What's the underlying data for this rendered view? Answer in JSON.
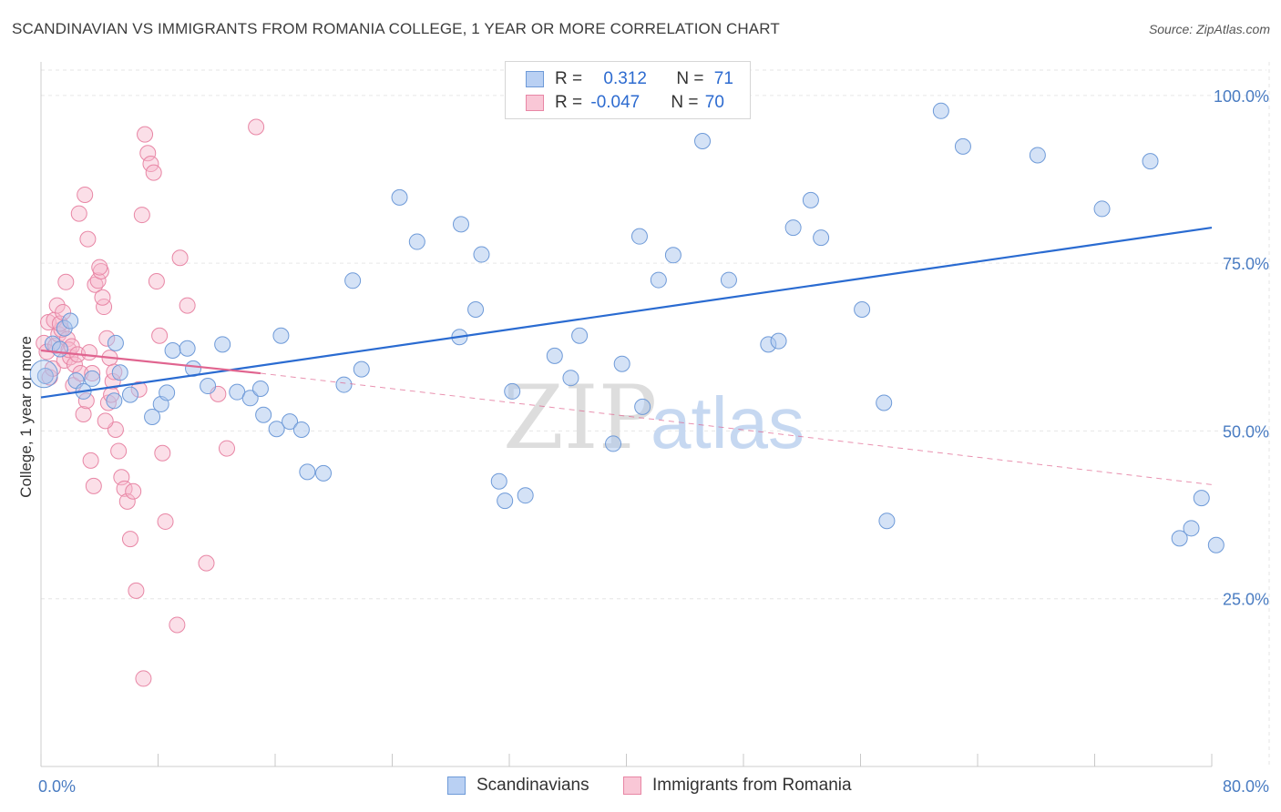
{
  "title": "SCANDINAVIAN VS IMMIGRANTS FROM ROMANIA COLLEGE, 1 YEAR OR MORE CORRELATION CHART",
  "source": "Source: ZipAtlas.com",
  "watermark": {
    "zip": "ZIP",
    "atlas": "atlas"
  },
  "legend": {
    "rows": [
      {
        "r_label": "R = ",
        "r_value": "0.312",
        "n_label": "N = ",
        "n_value": "71"
      },
      {
        "r_label": "R = ",
        "r_value": "-0.047",
        "n_label": "N = ",
        "n_value": "70"
      }
    ]
  },
  "bottom_legend": {
    "series1": "Scandinavians",
    "series2": "Immigrants from Romania"
  },
  "colors": {
    "blue_fill": "#a9c5ee",
    "blue_stroke": "#6e9ad8",
    "blue_line": "#2a6bd1",
    "pink_fill": "#f7b8cb",
    "pink_stroke": "#e886a5",
    "pink_line": "#e0648f"
  },
  "chart_data": {
    "type": "scatter",
    "title": "SCANDINAVIAN VS IMMIGRANTS FROM ROMANIA COLLEGE, 1 YEAR OR MORE CORRELATION CHART",
    "xlabel": "",
    "ylabel": "College, 1 year or more",
    "xlim": [
      0,
      80
    ],
    "ylim": [
      0,
      105
    ],
    "x_tick_labels": [
      "0.0%",
      "80.0%"
    ],
    "y_ticks": [
      25,
      50,
      75,
      100
    ],
    "y_tick_labels": [
      "25.0%",
      "50.0%",
      "75.0%",
      "100.0%"
    ],
    "grid": true,
    "series": [
      {
        "name": "Scandinavians",
        "r": 0.312,
        "n": 71,
        "trend": {
          "x0": 0,
          "y0": 55.0,
          "x1": 80,
          "y1": 80.3,
          "dashed_extension": false
        },
        "points": [
          [
            0.3,
            58.2
          ],
          [
            0.8,
            63.0
          ],
          [
            1.3,
            62.2
          ],
          [
            1.6,
            65.3
          ],
          [
            2.0,
            66.4
          ],
          [
            2.4,
            57.5
          ],
          [
            2.9,
            55.9
          ],
          [
            3.5,
            57.8
          ],
          [
            5.1,
            63.1
          ],
          [
            5.4,
            58.7
          ],
          [
            5.0,
            54.5
          ],
          [
            6.1,
            55.4
          ],
          [
            7.6,
            52.1
          ],
          [
            8.2,
            54.0
          ],
          [
            8.6,
            55.7
          ],
          [
            9.0,
            62.0
          ],
          [
            10.4,
            59.3
          ],
          [
            10.0,
            62.3
          ],
          [
            12.4,
            62.9
          ],
          [
            11.4,
            56.7
          ],
          [
            13.4,
            55.8
          ],
          [
            14.3,
            54.9
          ],
          [
            15.0,
            56.3
          ],
          [
            15.2,
            52.4
          ],
          [
            16.1,
            50.3
          ],
          [
            17.0,
            51.4
          ],
          [
            16.4,
            64.2
          ],
          [
            17.8,
            50.2
          ],
          [
            18.2,
            43.9
          ],
          [
            19.3,
            43.7
          ],
          [
            20.7,
            56.9
          ],
          [
            21.9,
            59.2
          ],
          [
            21.3,
            72.4
          ],
          [
            25.7,
            78.2
          ],
          [
            24.5,
            84.8
          ],
          [
            28.6,
            64.0
          ],
          [
            28.7,
            80.8
          ],
          [
            32.2,
            55.9
          ],
          [
            30.1,
            76.3
          ],
          [
            29.7,
            68.1
          ],
          [
            31.7,
            39.6
          ],
          [
            31.3,
            42.5
          ],
          [
            33.1,
            40.4
          ],
          [
            35.1,
            61.2
          ],
          [
            36.8,
            64.2
          ],
          [
            36.2,
            57.9
          ],
          [
            39.7,
            60.0
          ],
          [
            39.1,
            48.1
          ],
          [
            42.2,
            72.5
          ],
          [
            43.2,
            76.2
          ],
          [
            40.9,
            79.0
          ],
          [
            41.1,
            53.6
          ],
          [
            45.2,
            93.2
          ],
          [
            47.0,
            72.5
          ],
          [
            49.7,
            62.9
          ],
          [
            50.4,
            63.4
          ],
          [
            51.4,
            80.3
          ],
          [
            53.3,
            78.8
          ],
          [
            52.6,
            84.4
          ],
          [
            56.1,
            68.1
          ],
          [
            57.6,
            54.2
          ],
          [
            57.8,
            36.6
          ],
          [
            63.0,
            92.4
          ],
          [
            61.5,
            97.7
          ],
          [
            68.1,
            91.1
          ],
          [
            72.5,
            83.1
          ],
          [
            75.8,
            90.2
          ],
          [
            77.8,
            34.0
          ],
          [
            79.3,
            40.0
          ],
          [
            80.3,
            33.0
          ],
          [
            78.6,
            35.5
          ]
        ]
      },
      {
        "name": "Immigrants from Romania",
        "r": -0.047,
        "n": 70,
        "trend": {
          "x0": 0,
          "y0": 62.0,
          "x1": 15,
          "y1": 58.6,
          "dashed_extension": true,
          "dashed_to": [
            80,
            42.0
          ]
        },
        "points": [
          [
            0.2,
            63.1
          ],
          [
            0.4,
            61.8
          ],
          [
            0.6,
            58.0
          ],
          [
            0.8,
            59.3
          ],
          [
            1.0,
            62.7
          ],
          [
            1.2,
            64.4
          ],
          [
            1.4,
            65.1
          ],
          [
            1.6,
            60.5
          ],
          [
            1.8,
            63.7
          ],
          [
            2.0,
            61.0
          ],
          [
            2.2,
            56.8
          ],
          [
            0.5,
            66.2
          ],
          [
            0.9,
            66.5
          ],
          [
            1.1,
            68.7
          ],
          [
            1.3,
            66.0
          ],
          [
            1.5,
            67.7
          ],
          [
            1.7,
            72.2
          ],
          [
            1.9,
            62.1
          ],
          [
            2.1,
            62.6
          ],
          [
            2.3,
            59.9
          ],
          [
            2.5,
            61.4
          ],
          [
            2.7,
            58.6
          ],
          [
            2.9,
            52.5
          ],
          [
            3.1,
            54.5
          ],
          [
            3.3,
            61.7
          ],
          [
            3.5,
            58.6
          ],
          [
            3.7,
            71.8
          ],
          [
            3.9,
            72.4
          ],
          [
            4.1,
            73.8
          ],
          [
            4.3,
            68.5
          ],
          [
            4.5,
            63.8
          ],
          [
            4.7,
            60.9
          ],
          [
            4.9,
            57.4
          ],
          [
            5.1,
            50.2
          ],
          [
            5.3,
            47.0
          ],
          [
            5.5,
            43.1
          ],
          [
            5.7,
            41.4
          ],
          [
            5.9,
            39.5
          ],
          [
            6.1,
            33.9
          ],
          [
            6.3,
            41.0
          ],
          [
            6.5,
            26.2
          ],
          [
            6.7,
            56.2
          ],
          [
            2.6,
            82.4
          ],
          [
            3.0,
            85.2
          ],
          [
            3.2,
            78.6
          ],
          [
            3.4,
            45.6
          ],
          [
            3.6,
            41.8
          ],
          [
            6.9,
            82.2
          ],
          [
            7.1,
            94.2
          ],
          [
            7.3,
            91.4
          ],
          [
            7.5,
            89.8
          ],
          [
            7.7,
            88.5
          ],
          [
            7.9,
            72.3
          ],
          [
            8.1,
            64.2
          ],
          [
            8.3,
            46.7
          ],
          [
            8.5,
            36.5
          ],
          [
            4.0,
            74.4
          ],
          [
            4.2,
            69.9
          ],
          [
            4.4,
            51.5
          ],
          [
            4.6,
            54.2
          ],
          [
            4.8,
            55.4
          ],
          [
            5.0,
            58.8
          ],
          [
            9.5,
            75.8
          ],
          [
            10.0,
            68.7
          ],
          [
            14.7,
            95.3
          ],
          [
            12.1,
            55.5
          ],
          [
            12.7,
            47.4
          ],
          [
            11.3,
            30.3
          ],
          [
            9.3,
            21.1
          ],
          [
            7.0,
            13.1
          ]
        ]
      }
    ]
  }
}
